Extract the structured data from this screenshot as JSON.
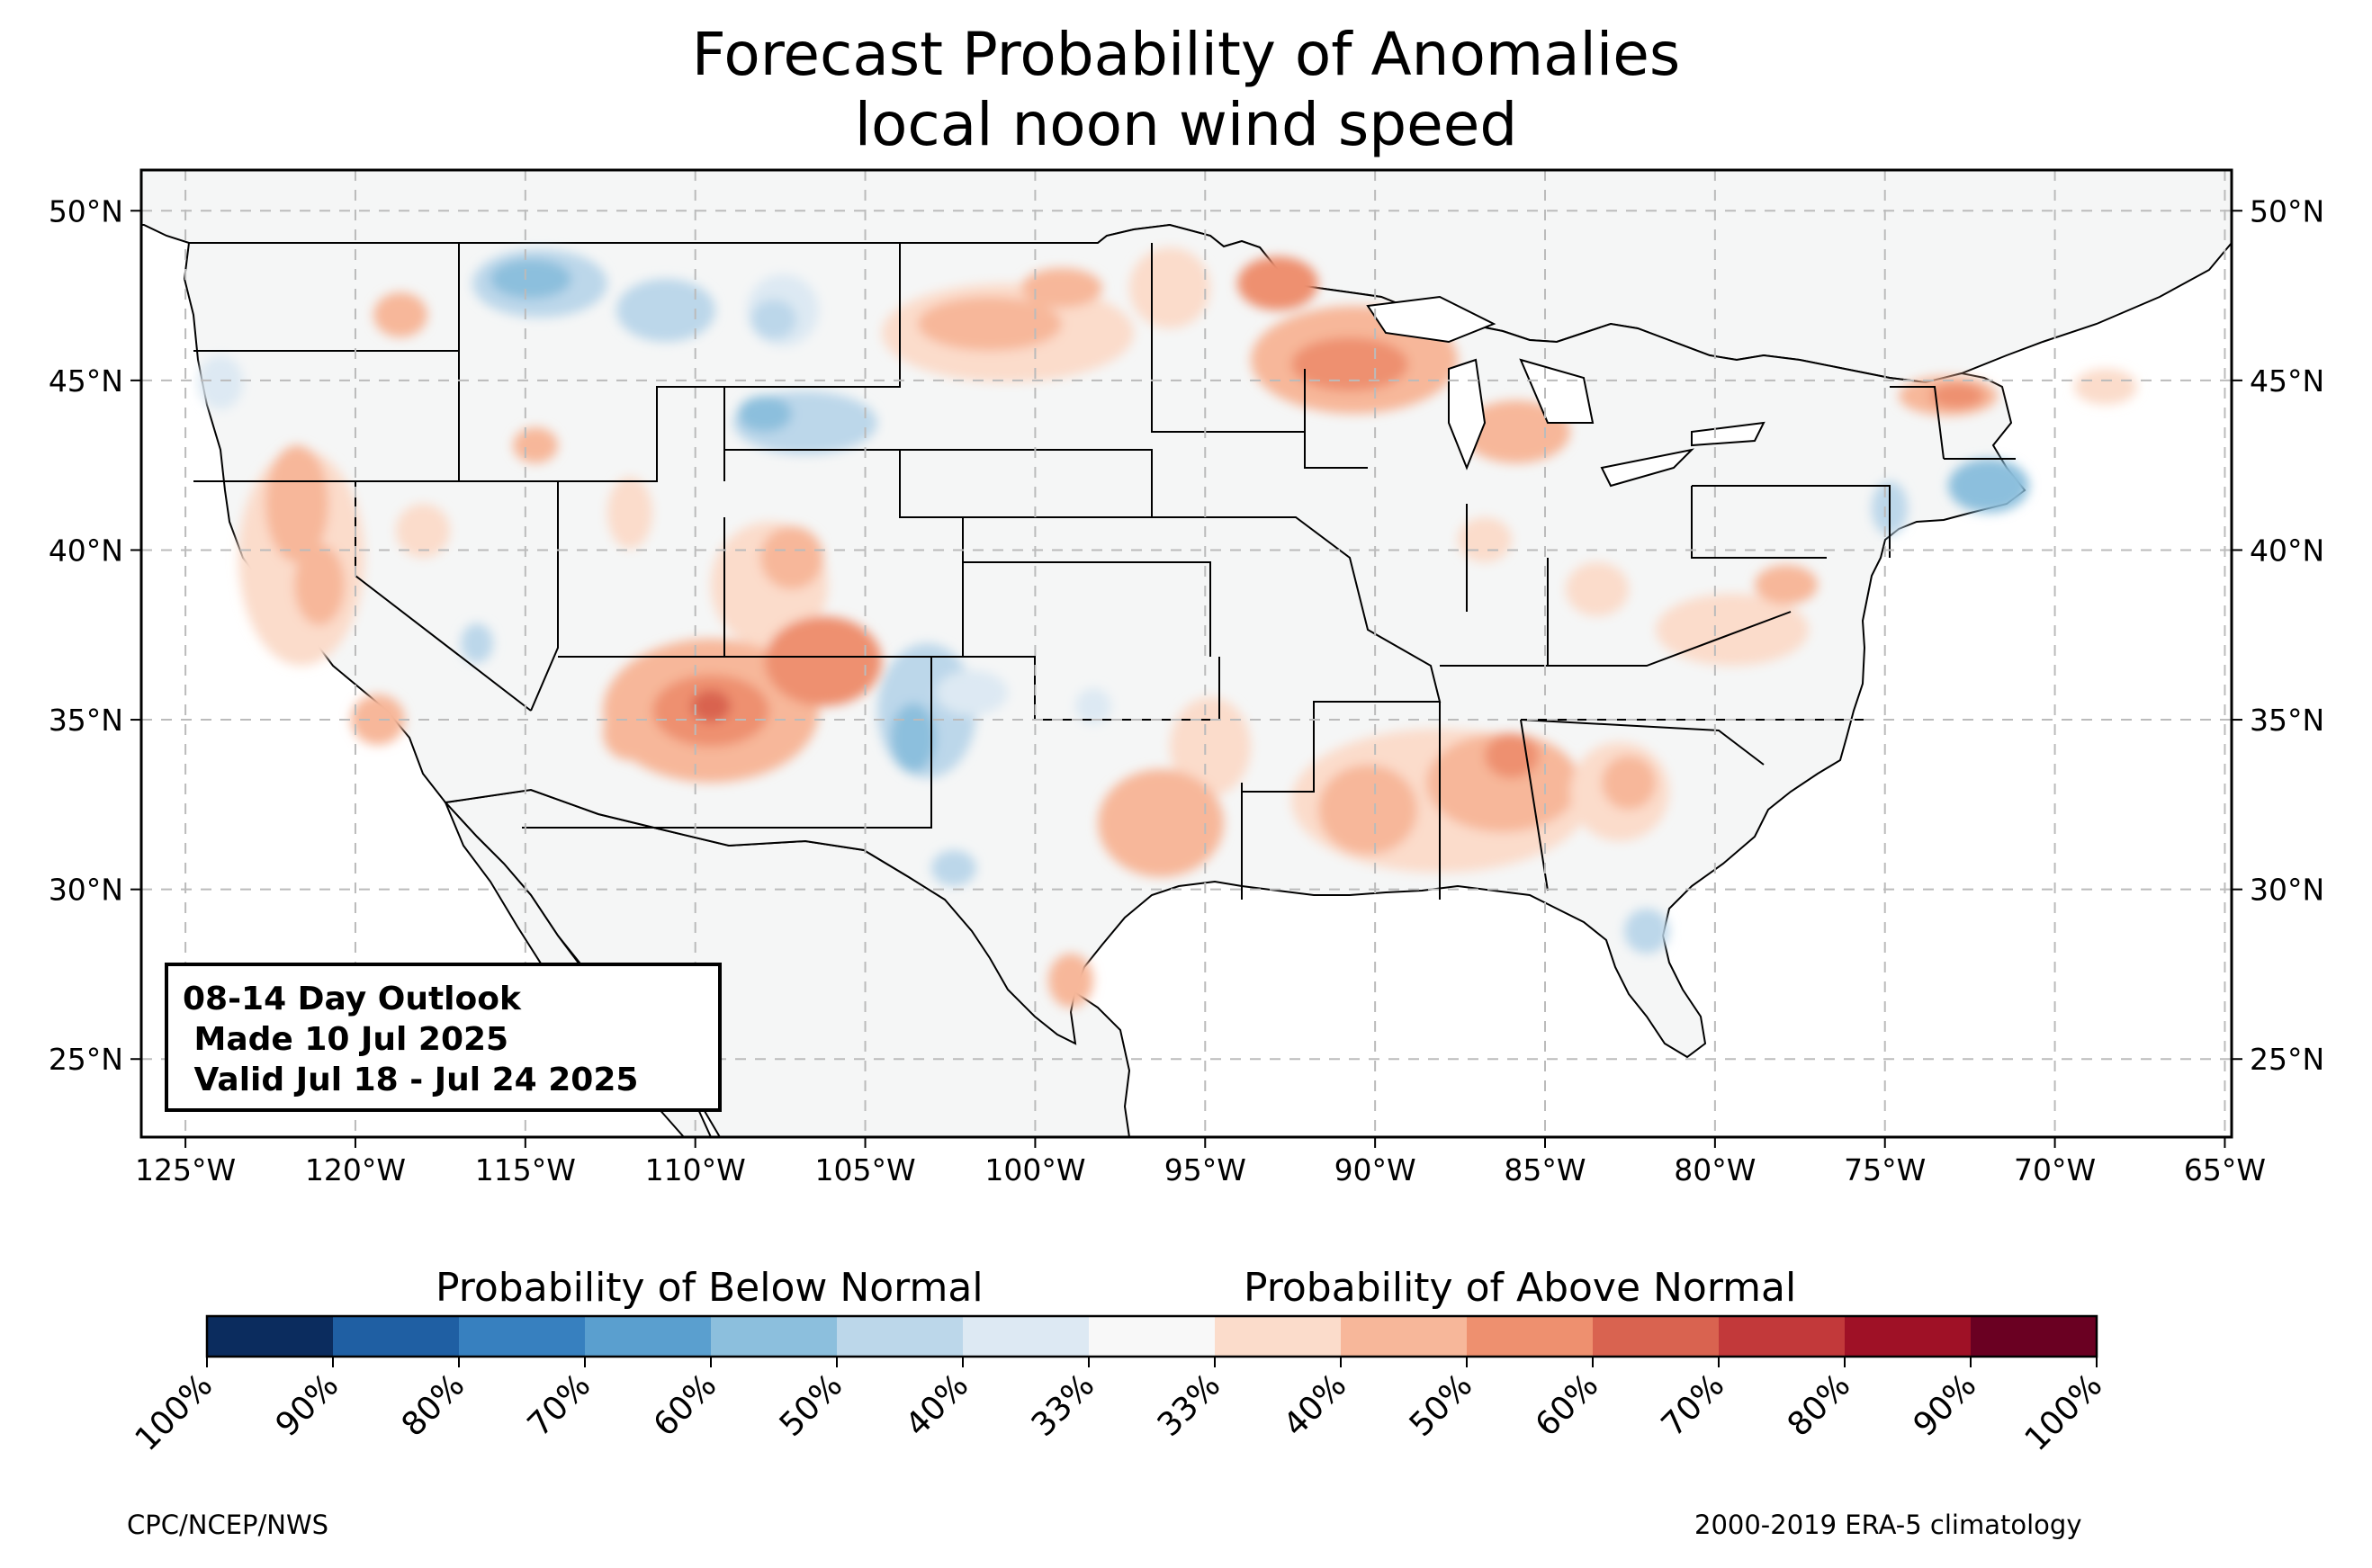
{
  "title": {
    "line1": "Forecast Probability of Anomalies",
    "line2": "local noon wind speed"
  },
  "map": {
    "lon_ticks": [
      "125°W",
      "120°W",
      "115°W",
      "110°W",
      "105°W",
      "100°W",
      "95°W",
      "90°W",
      "85°W",
      "80°W",
      "75°W",
      "70°W",
      "65°W"
    ],
    "lat_ticks": [
      "50°N",
      "45°N",
      "40°N",
      "35°N",
      "30°N",
      "25°N"
    ],
    "lon_range": [
      -126.3,
      -64.8
    ],
    "lat_range": [
      22.7,
      51.2
    ],
    "gridlines": true,
    "land_color": "#f5f6f6",
    "anomaly_regions": [
      {
        "name": "northern-rockies",
        "category": "below",
        "level": "40-50%"
      },
      {
        "name": "wyoming",
        "category": "below",
        "level": "40-50%"
      },
      {
        "name": "new-mexico-east",
        "category": "below",
        "level": "40-50%"
      },
      {
        "name": "northern-new-england",
        "category": "below",
        "level": "40-50%"
      },
      {
        "name": "northern-arizona",
        "category": "above",
        "level": "50-60%"
      },
      {
        "name": "colorado-southwest",
        "category": "above",
        "level": "40-50%"
      },
      {
        "name": "california",
        "category": "above",
        "level": "40-50%"
      },
      {
        "name": "upper-midwest",
        "category": "above",
        "level": "40-50%"
      },
      {
        "name": "deep-south",
        "category": "above",
        "level": "40-50%"
      },
      {
        "name": "virginia-carolinas",
        "category": "above",
        "level": "40-50%"
      },
      {
        "name": "vermont",
        "category": "above",
        "level": "40-50%"
      }
    ]
  },
  "info_box": {
    "line1": "08-14 Day Outlook",
    "line2": " Made 10 Jul 2025",
    "line3": " Valid Jul 18 - Jul 24 2025"
  },
  "colorbar": {
    "below_label": "Probability of Below Normal",
    "above_label": "Probability of Above Normal",
    "tick_labels": [
      "100%",
      "90%",
      "80%",
      "70%",
      "60%",
      "50%",
      "40%",
      "33%",
      "33%",
      "40%",
      "50%",
      "60%",
      "70%",
      "80%",
      "90%",
      "100%"
    ],
    "colors": [
      "#0b2c5e",
      "#1f5fa3",
      "#3780bf",
      "#5a9fcf",
      "#8cbfdd",
      "#bcd7ea",
      "#dde9f3",
      "#f8f8f8",
      "#fbdccb",
      "#f7b79a",
      "#ee906f",
      "#d96350",
      "#c2393a",
      "#9f1126",
      "#6a0022"
    ]
  },
  "footer": {
    "left": "CPC/NCEP/NWS",
    "right": "2000-2019 ERA-5 climatology"
  }
}
